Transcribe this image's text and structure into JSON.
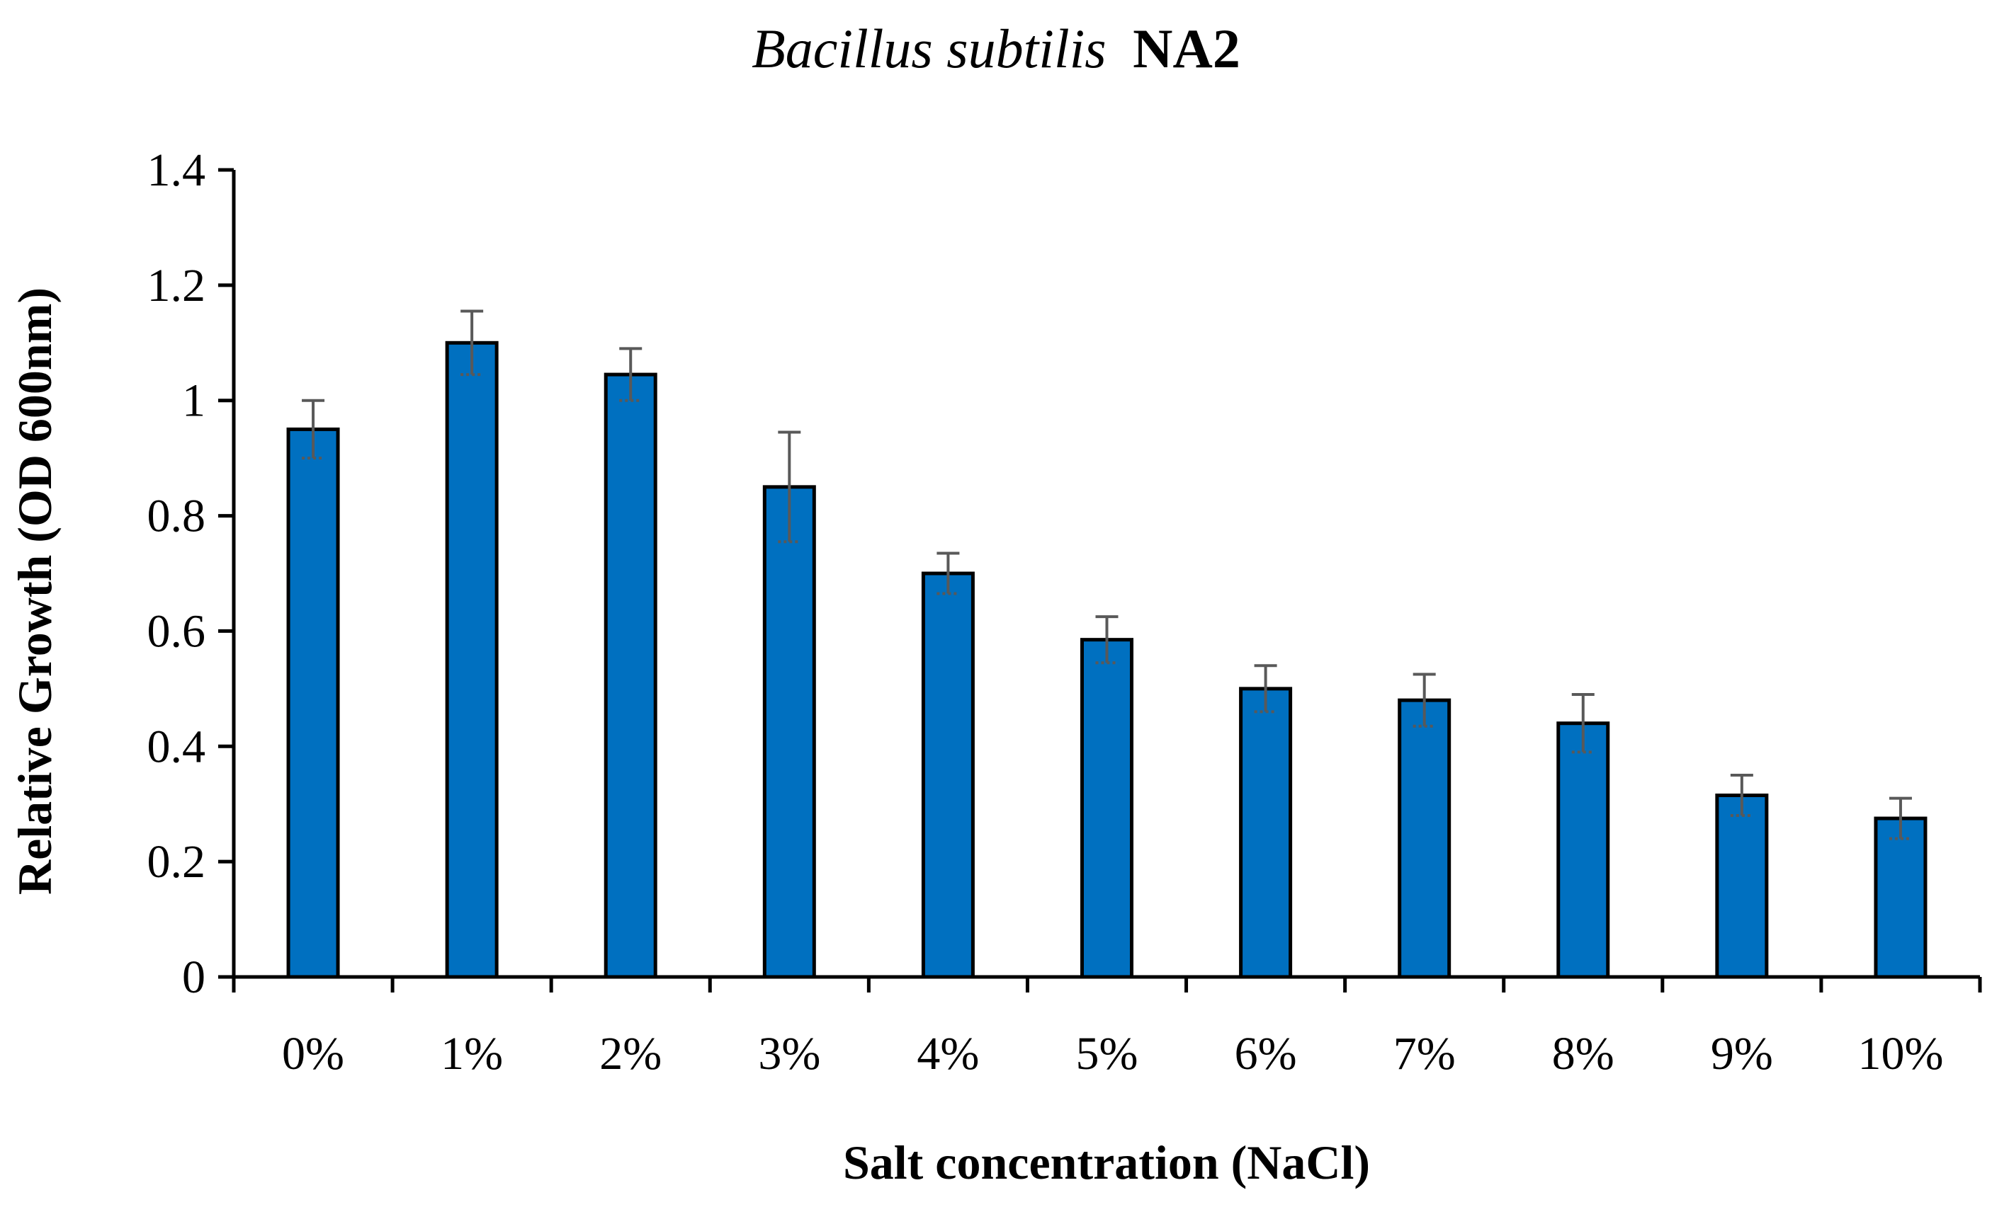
{
  "chart_data": {
    "type": "bar",
    "title_italic": "Bacillus subtilis",
    "title_rest": "NA2",
    "xlabel": "Salt concentration (NaCl)",
    "ylabel": "Relative Growth (OD 600nm)",
    "categories": [
      "0%",
      "1%",
      "2%",
      "3%",
      "4%",
      "5%",
      "6%",
      "7%",
      "8%",
      "9%",
      "10%"
    ],
    "values": [
      0.95,
      1.1,
      1.045,
      0.85,
      0.7,
      0.585,
      0.5,
      0.48,
      0.44,
      0.315,
      0.275
    ],
    "errors": [
      0.05,
      0.055,
      0.045,
      0.095,
      0.035,
      0.04,
      0.04,
      0.045,
      0.05,
      0.035,
      0.035
    ],
    "ylim": [
      0,
      1.4
    ],
    "yticks": [
      0,
      0.2,
      0.4,
      0.6,
      0.8,
      1,
      1.2,
      1.4
    ],
    "ytick_labels": [
      "0",
      "0.2",
      "0.4",
      "0.6",
      "0.8",
      "1",
      "1.2",
      "1.4"
    ],
    "grid": false,
    "colors": {
      "bar": "#0070C0",
      "bar_edge": "#000000",
      "error_bar": "#595959",
      "axis": "#000000"
    }
  }
}
